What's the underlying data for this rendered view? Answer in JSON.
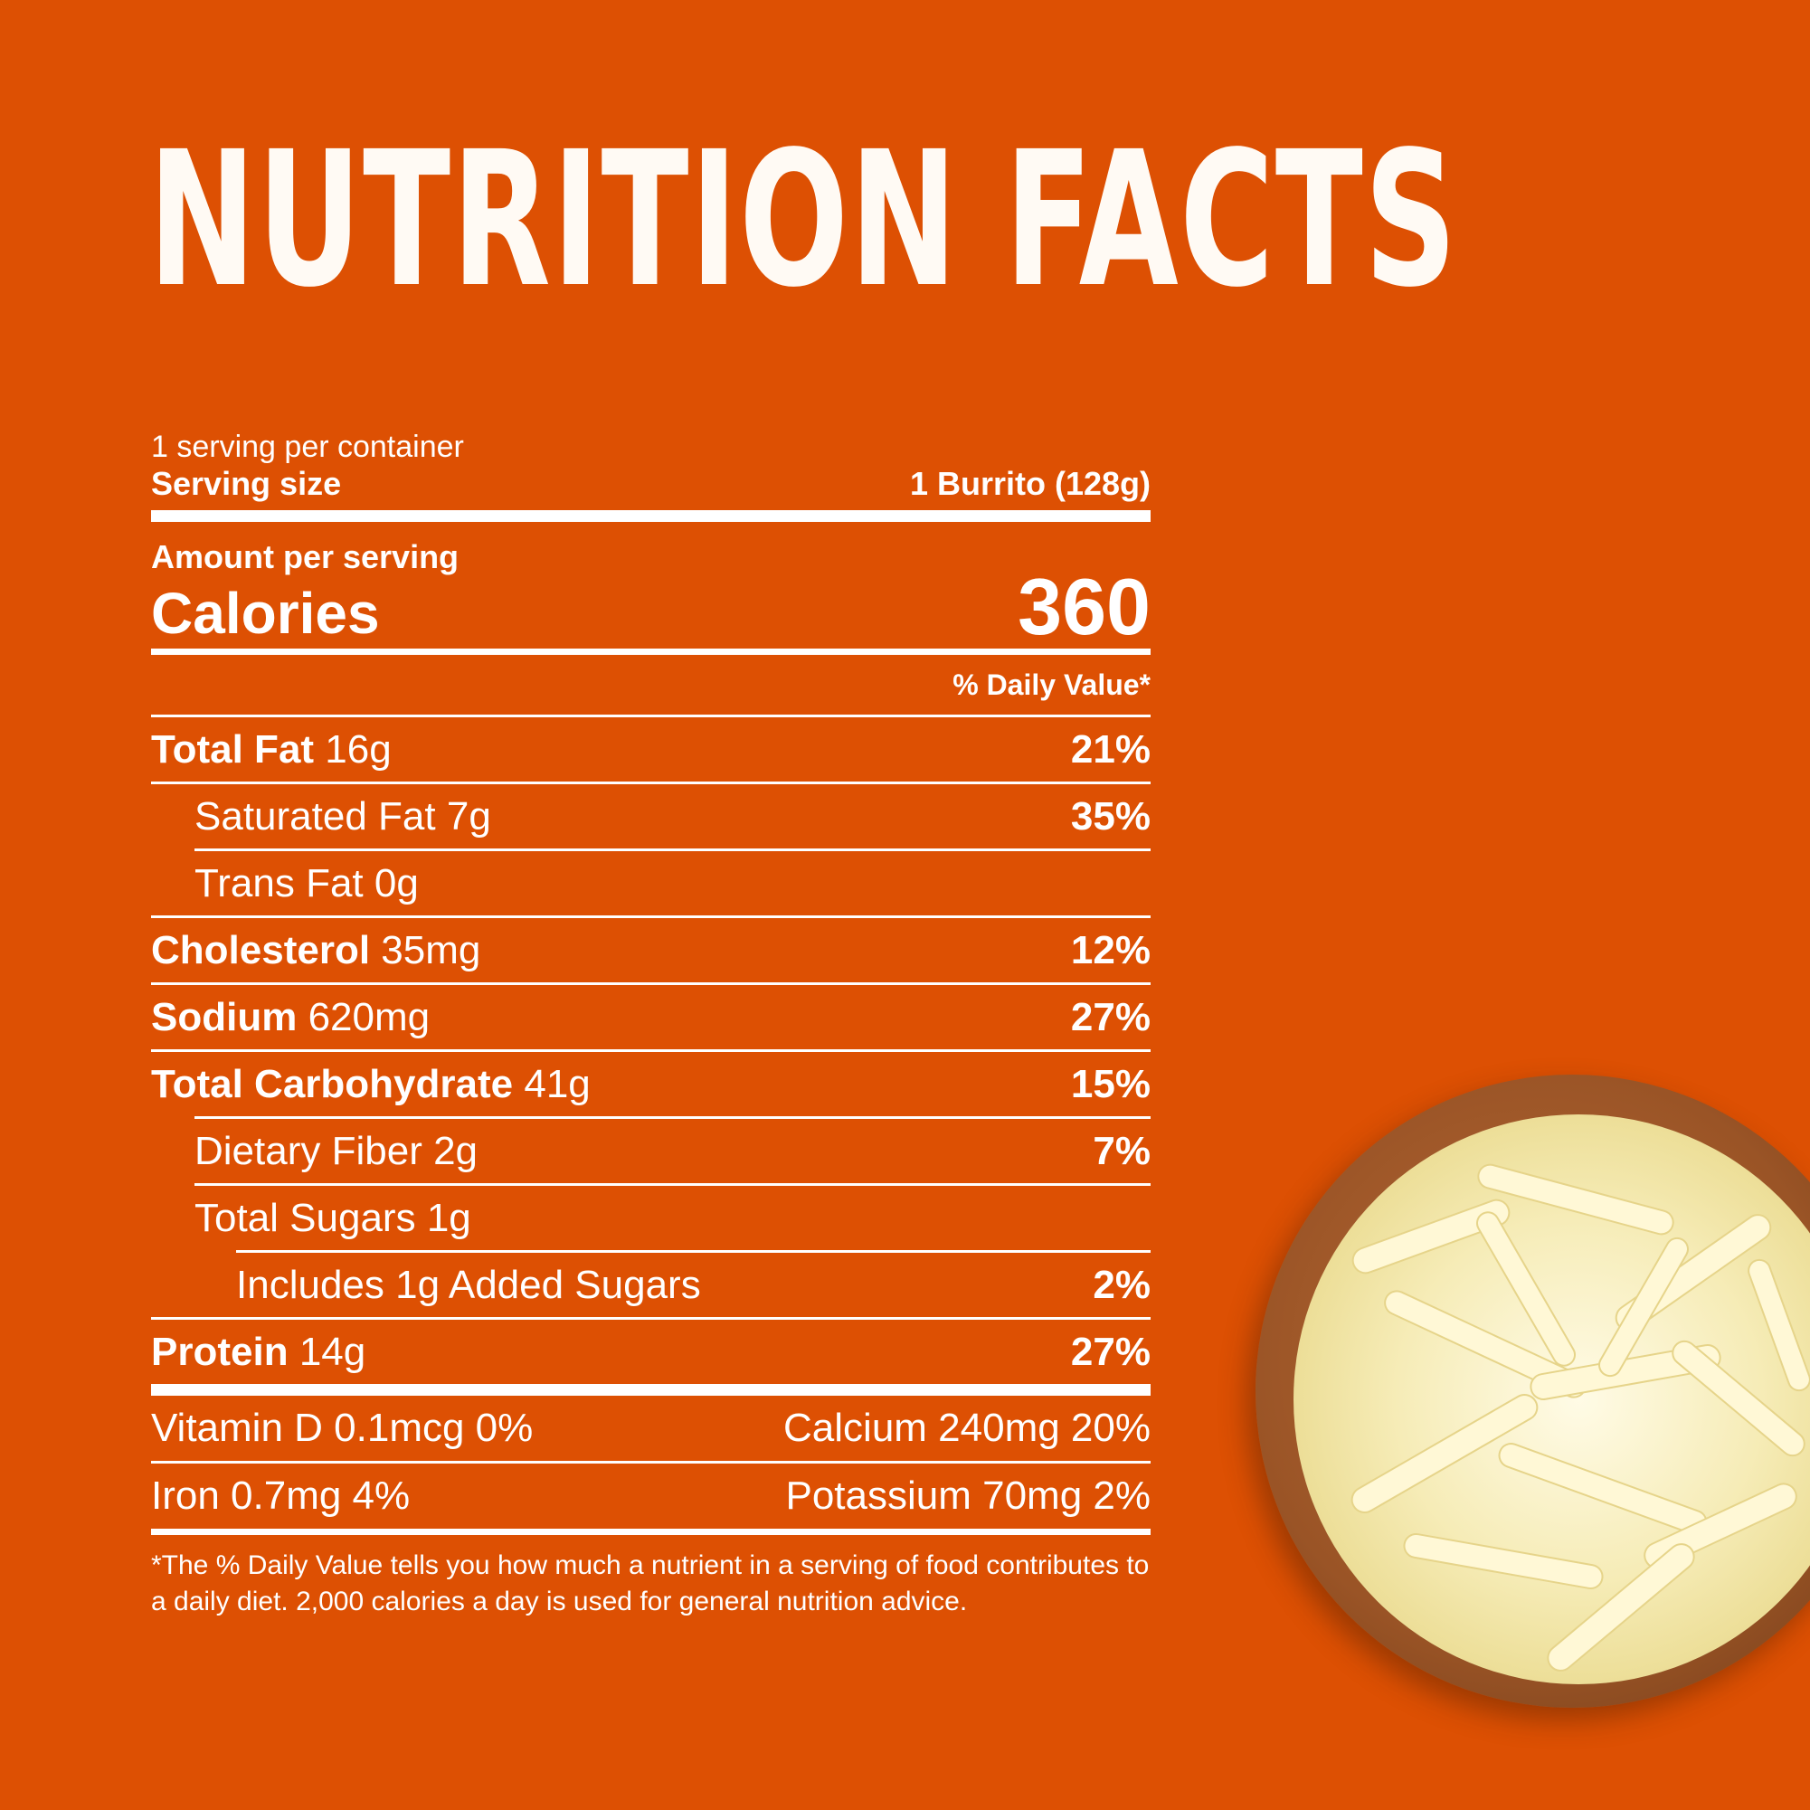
{
  "title": "NUTRITION FACTS",
  "servings_per_container": "1 serving per container",
  "serving_size": {
    "label": "Serving size",
    "value": "1 Burrito (128g)"
  },
  "amount_per_serving": "Amount per serving",
  "calories": {
    "label": "Calories",
    "value": "360"
  },
  "daily_value_header": "% Daily Value*",
  "nutrients": [
    {
      "name": "Total Fat",
      "amount": "16g",
      "dv": "21%"
    },
    {
      "name": "Saturated Fat",
      "amount": "7g",
      "dv": "35%"
    },
    {
      "name": "Trans Fat",
      "amount": "0g",
      "dv": ""
    },
    {
      "name": "Cholesterol",
      "amount": "35mg",
      "dv": "12%"
    },
    {
      "name": "Sodium",
      "amount": "620mg",
      "dv": "27%"
    },
    {
      "name": "Total Carbohydrate",
      "amount": "41g",
      "dv": "15%"
    },
    {
      "name": "Dietary Fiber",
      "amount": "2g",
      "dv": "7%"
    },
    {
      "name": "Total Sugars",
      "amount": "1g",
      "dv": ""
    },
    {
      "name": "Includes 1g Added Sugars",
      "amount": "",
      "dv": "2%"
    },
    {
      "name": "Protein",
      "amount": "14g",
      "dv": "27%"
    }
  ],
  "vitamins": [
    {
      "left": "Vitamin D 0.1mcg 0%",
      "right": "Calcium 240mg 20%"
    },
    {
      "left": "Iron 0.7mg 4%",
      "right": "Potassium 70mg 2%"
    }
  ],
  "footnote": "*The % Daily Value tells you how much a nutrient in a serving of food contributes to a daily diet. 2,000 calories a day is used for general nutrition advice.",
  "colors": {
    "background": "#dd5003",
    "text": "#ffffff"
  },
  "image": {
    "subject": "bowl-of-shredded-cheese"
  }
}
